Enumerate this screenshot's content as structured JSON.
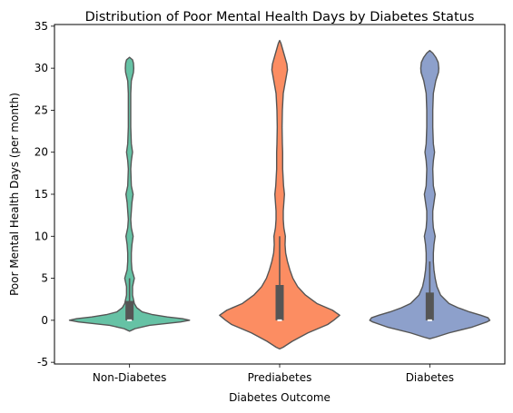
{
  "chart_data": {
    "type": "violin",
    "title": "Distribution of Poor Mental Health Days by Diabetes Status",
    "xlabel": "Diabetes Outcome",
    "ylabel": "Poor Mental Health Days (per month)",
    "ylim": [
      -5.2,
      35.2
    ],
    "yticks": [
      -5,
      0,
      5,
      10,
      15,
      20,
      25,
      30,
      35
    ],
    "grid": false,
    "categories": [
      "Non-Diabetes",
      "Prediabetes",
      "Diabetes"
    ],
    "colors": [
      "#66c2a5",
      "#fc8d62",
      "#8da0cb"
    ],
    "edge_color": "#555555",
    "series": [
      {
        "category": "Non-Diabetes",
        "box": {
          "q1": 0,
          "median": 0,
          "q3": 2.3,
          "whisker_low": 0,
          "whisker_high": 5
        },
        "density_profile": [
          [
            -1.3,
            0.0
          ],
          [
            -1.2,
            0.03
          ],
          [
            -1.0,
            0.09
          ],
          [
            -0.6,
            0.33
          ],
          [
            -0.2,
            0.85
          ],
          [
            0.0,
            1.0
          ],
          [
            0.2,
            0.88
          ],
          [
            0.4,
            0.63
          ],
          [
            0.7,
            0.37
          ],
          [
            1.0,
            0.21
          ],
          [
            1.5,
            0.12
          ],
          [
            2.0,
            0.08
          ],
          [
            3.0,
            0.05
          ],
          [
            4.0,
            0.05
          ],
          [
            5.0,
            0.08
          ],
          [
            6.0,
            0.04
          ],
          [
            7.0,
            0.03
          ],
          [
            8.0,
            0.03
          ],
          [
            9.0,
            0.04
          ],
          [
            10.0,
            0.06
          ],
          [
            11.0,
            0.03
          ],
          [
            12.0,
            0.02
          ],
          [
            13.0,
            0.03
          ],
          [
            14.0,
            0.04
          ],
          [
            15.0,
            0.06
          ],
          [
            16.0,
            0.03
          ],
          [
            18.0,
            0.02
          ],
          [
            19.0,
            0.03
          ],
          [
            20.0,
            0.05
          ],
          [
            21.0,
            0.03
          ],
          [
            23.0,
            0.02
          ],
          [
            25.0,
            0.02
          ],
          [
            27.0,
            0.02
          ],
          [
            28.5,
            0.03
          ],
          [
            29.5,
            0.065
          ],
          [
            30.0,
            0.07
          ],
          [
            30.6,
            0.065
          ],
          [
            31.0,
            0.05
          ],
          [
            31.3,
            0.0
          ]
        ]
      },
      {
        "category": "Prediabetes",
        "box": {
          "q1": 0,
          "median": 0,
          "q3": 4.2,
          "whisker_low": 0,
          "whisker_high": 10
        },
        "density_profile": [
          [
            -3.4,
            0.0
          ],
          [
            -3.2,
            0.06
          ],
          [
            -2.5,
            0.21
          ],
          [
            -1.5,
            0.47
          ],
          [
            -0.5,
            0.8
          ],
          [
            0.0,
            0.9
          ],
          [
            0.3,
            0.95
          ],
          [
            0.6,
            1.0
          ],
          [
            1.2,
            0.88
          ],
          [
            2.0,
            0.62
          ],
          [
            3.0,
            0.43
          ],
          [
            4.0,
            0.3
          ],
          [
            5.0,
            0.22
          ],
          [
            6.0,
            0.17
          ],
          [
            7.0,
            0.13
          ],
          [
            8.0,
            0.1
          ],
          [
            9.0,
            0.09
          ],
          [
            10.0,
            0.095
          ],
          [
            11.0,
            0.07
          ],
          [
            12.0,
            0.06
          ],
          [
            13.0,
            0.06
          ],
          [
            14.0,
            0.07
          ],
          [
            15.0,
            0.08
          ],
          [
            16.0,
            0.065
          ],
          [
            18.0,
            0.05
          ],
          [
            20.0,
            0.05
          ],
          [
            21.0,
            0.045
          ],
          [
            23.0,
            0.04
          ],
          [
            25.0,
            0.045
          ],
          [
            27.0,
            0.06
          ],
          [
            28.0,
            0.085
          ],
          [
            29.0,
            0.11
          ],
          [
            29.8,
            0.13
          ],
          [
            30.5,
            0.12
          ],
          [
            31.5,
            0.08
          ],
          [
            32.5,
            0.04
          ],
          [
            33.0,
            0.02
          ],
          [
            33.3,
            0.0
          ]
        ]
      },
      {
        "category": "Diabetes",
        "box": {
          "q1": 0,
          "median": 0,
          "q3": 3.3,
          "whisker_low": 0,
          "whisker_high": 7
        },
        "density_profile": [
          [
            -2.2,
            0.0
          ],
          [
            -2.0,
            0.1
          ],
          [
            -1.5,
            0.32
          ],
          [
            -0.8,
            0.71
          ],
          [
            -0.2,
            0.95
          ],
          [
            0.0,
            1.0
          ],
          [
            0.3,
            0.97
          ],
          [
            0.6,
            0.85
          ],
          [
            1.0,
            0.66
          ],
          [
            1.5,
            0.47
          ],
          [
            2.0,
            0.32
          ],
          [
            3.0,
            0.18
          ],
          [
            4.0,
            0.12
          ],
          [
            5.0,
            0.09
          ],
          [
            6.0,
            0.07
          ],
          [
            7.0,
            0.06
          ],
          [
            8.0,
            0.06
          ],
          [
            9.0,
            0.07
          ],
          [
            10.0,
            0.09
          ],
          [
            11.0,
            0.06
          ],
          [
            12.0,
            0.05
          ],
          [
            13.0,
            0.05
          ],
          [
            14.0,
            0.07
          ],
          [
            15.0,
            0.09
          ],
          [
            16.0,
            0.06
          ],
          [
            18.0,
            0.05
          ],
          [
            19.0,
            0.06
          ],
          [
            20.0,
            0.08
          ],
          [
            21.0,
            0.06
          ],
          [
            23.0,
            0.05
          ],
          [
            25.0,
            0.05
          ],
          [
            27.0,
            0.06
          ],
          [
            28.5,
            0.1
          ],
          [
            29.5,
            0.145
          ],
          [
            30.0,
            0.15
          ],
          [
            30.7,
            0.14
          ],
          [
            31.3,
            0.1
          ],
          [
            31.8,
            0.05
          ],
          [
            32.1,
            0.0
          ]
        ]
      }
    ]
  }
}
